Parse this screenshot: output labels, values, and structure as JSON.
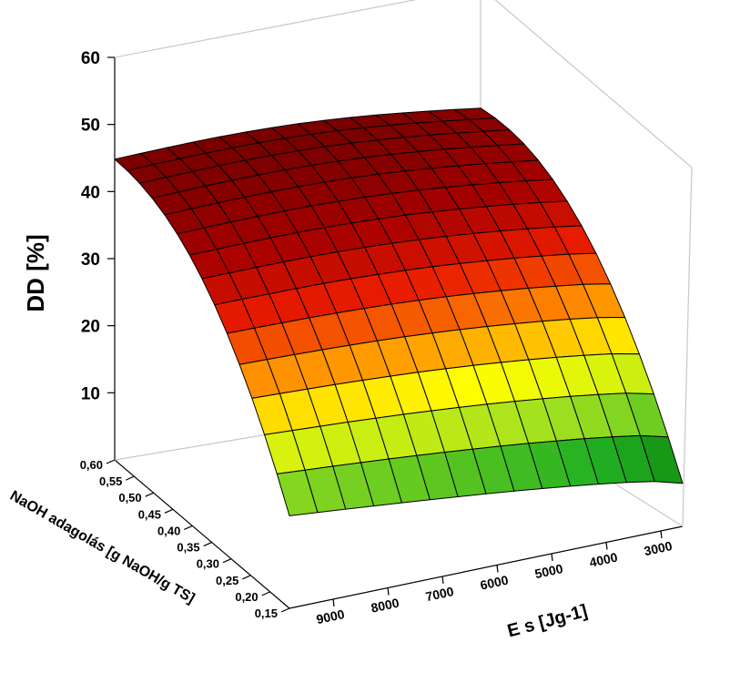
{
  "chart_data": {
    "type": "surface3d",
    "zlabel": "DD [%]",
    "xlabel": "NaOH adagolás [g NaOH/g TS]",
    "ylabel": "E s [Jg-1]",
    "z_ticks": [
      "10",
      "20",
      "30",
      "40",
      "50",
      "60"
    ],
    "x_ticks": [
      "0,15",
      "0,20",
      "0,25",
      "0,30",
      "0,35",
      "0,40",
      "0,45",
      "0,50",
      "0,55",
      "0,60"
    ],
    "y_ticks": [
      "3000",
      "4000",
      "5000",
      "6000",
      "7000",
      "8000",
      "9000"
    ],
    "zlim": [
      0,
      60
    ],
    "xlim": [
      0.15,
      0.6
    ],
    "ylim": [
      2600,
      9800
    ],
    "surface_corners": [
      {
        "naoh": 0.6,
        "es": 9800,
        "dd": 45.5
      },
      {
        "naoh": 0.6,
        "es": 2600,
        "dd": 44
      },
      {
        "naoh": 0.15,
        "es": 9800,
        "dd": 14
      },
      {
        "naoh": 0.15,
        "es": 2600,
        "dd": 6.5
      }
    ],
    "colormap": [
      "#006400",
      "#22b022",
      "#a0e020",
      "#ffff00",
      "#ff8c00",
      "#e81c00",
      "#a60000",
      "#7a0000"
    ],
    "grid_lines": 14
  }
}
